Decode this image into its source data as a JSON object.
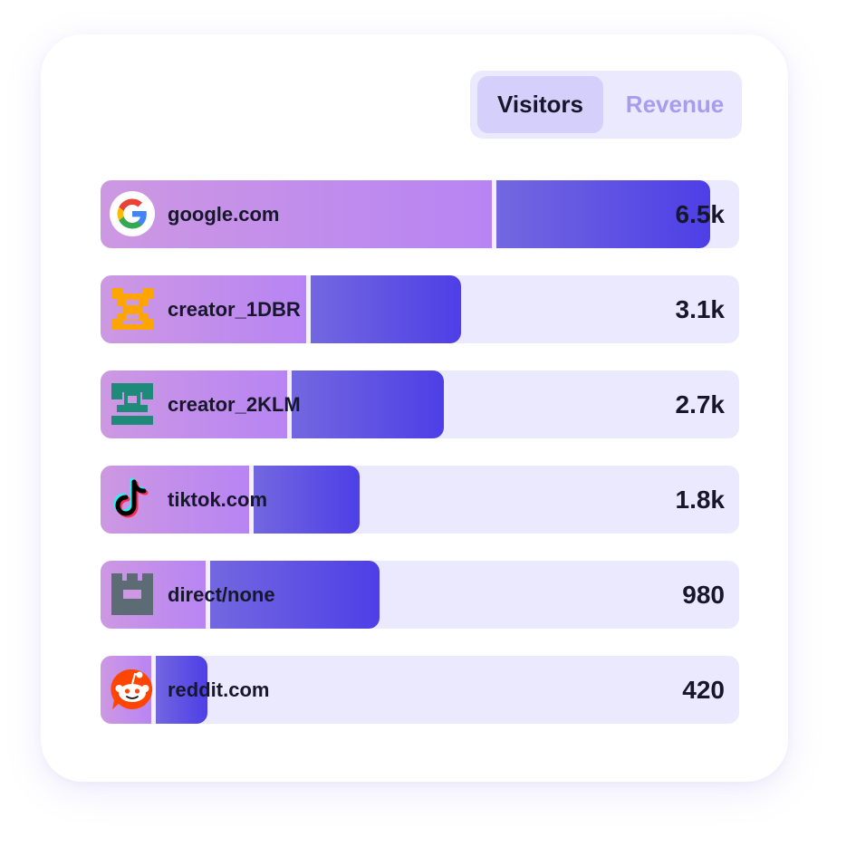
{
  "toggle": {
    "options": [
      "Visitors",
      "Revenue"
    ],
    "selected": "Visitors"
  },
  "rows": [
    {
      "source": "google.com",
      "value_label": "6.5k",
      "visitors": 6500,
      "icon": "google-icon",
      "split": 0.615,
      "fill": 0.955
    },
    {
      "source": "creator_1DBR",
      "value_label": "3.1k",
      "visitors": 3100,
      "icon": "creator-1dbr-icon",
      "split": 0.325,
      "fill": 0.565
    },
    {
      "source": "creator_2KLM",
      "value_label": "2.7k",
      "visitors": 2700,
      "icon": "creator-2klm-icon",
      "split": 0.295,
      "fill": 0.537
    },
    {
      "source": "tiktok.com",
      "value_label": "1.8k",
      "visitors": 1800,
      "icon": "tiktok-icon",
      "split": 0.235,
      "fill": 0.405
    },
    {
      "source": "direct/none",
      "value_label": "980",
      "visitors": 980,
      "icon": "direct-none-icon",
      "split": 0.167,
      "fill": 0.437
    },
    {
      "source": "reddit.com",
      "value_label": "420",
      "visitors": 420,
      "icon": "reddit-icon",
      "split": 0.082,
      "fill": 0.168
    }
  ],
  "colors": {
    "track": "#ebe9fd",
    "bar_left": "#b784f4",
    "bar_right": "#4d3fe6",
    "text": "#17172b",
    "toggle_inactive_text": "#a79cf0"
  }
}
